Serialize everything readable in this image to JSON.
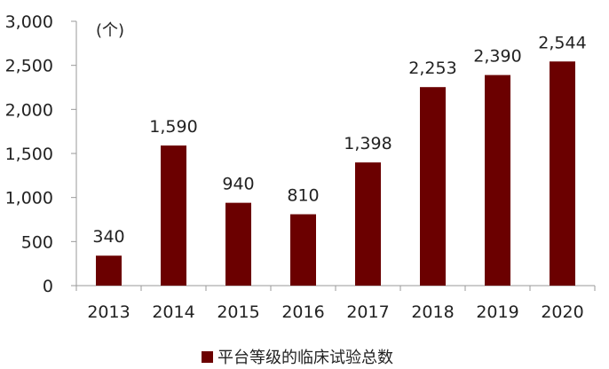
{
  "chart_data": {
    "type": "bar",
    "categories": [
      "2013",
      "2014",
      "2015",
      "2016",
      "2017",
      "2018",
      "2019",
      "2020"
    ],
    "series": [
      {
        "name": "平台等级的临床试验总数",
        "values": [
          340,
          1590,
          940,
          810,
          1398,
          2253,
          2390,
          2544
        ],
        "value_labels": [
          "340",
          "1,590",
          "940",
          "810",
          "1,398",
          "2,253",
          "2,390",
          "2,544"
        ],
        "color": "#6b0000"
      }
    ],
    "unit_label": "(个)",
    "ylim": [
      0,
      3000
    ],
    "yticks": [
      0,
      500,
      1000,
      1500,
      2000,
      2500,
      3000
    ],
    "ytick_labels": [
      "0",
      "500",
      "1,000",
      "1,500",
      "2,000",
      "2,500",
      "3,000"
    ],
    "grid": false,
    "legend_position": "bottom",
    "axis_color": "#9a9a9a"
  }
}
